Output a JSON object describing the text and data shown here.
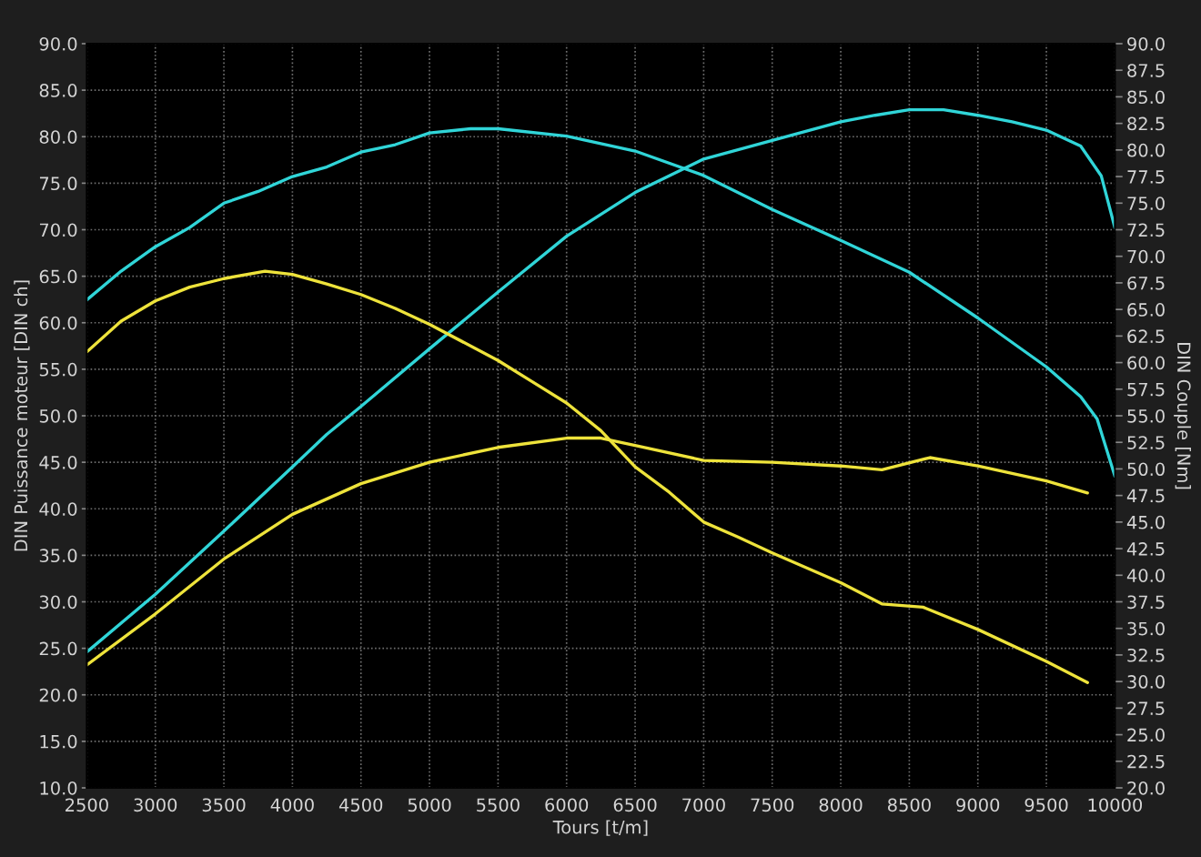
{
  "chart_data": {
    "type": "line",
    "xlabel": "Tours [t/m]",
    "ylabel": "DIN Puissance moteur [DIN ch]",
    "y2label": "DIN Couple [Nm]",
    "xlim": [
      2500,
      10000
    ],
    "xticks": [
      2500,
      3000,
      3500,
      4000,
      4500,
      5000,
      5500,
      6000,
      6500,
      7000,
      7500,
      8000,
      8500,
      9000,
      9500,
      10000
    ],
    "ylim": [
      10,
      90
    ],
    "yticks": [
      {
        "value": 10,
        "label": "10.0"
      },
      {
        "value": 15,
        "label": "15.0"
      },
      {
        "value": 20,
        "label": "20.0"
      },
      {
        "value": 25,
        "label": "25.0"
      },
      {
        "value": 30,
        "label": "30.0"
      },
      {
        "value": 35,
        "label": "35.0"
      },
      {
        "value": 40,
        "label": "40.0"
      },
      {
        "value": 45,
        "label": "45.0"
      },
      {
        "value": 50,
        "label": "50.0"
      },
      {
        "value": 55,
        "label": "55.0"
      },
      {
        "value": 60,
        "label": "60.0"
      },
      {
        "value": 65,
        "label": "65.0"
      },
      {
        "value": 70,
        "label": "70.0"
      },
      {
        "value": 75,
        "label": "75.0"
      },
      {
        "value": 80,
        "label": "80.0"
      },
      {
        "value": 85,
        "label": "85.0"
      },
      {
        "value": 90,
        "label": "90.0"
      }
    ],
    "y2lim": [
      20,
      90
    ],
    "y2ticks": [
      {
        "value": 20,
        "label": "20.0"
      },
      22.5,
      {
        "value": 25,
        "label": "25.0"
      },
      27.5,
      {
        "value": 30,
        "label": "30.0"
      },
      32.5,
      {
        "value": 35,
        "label": "35.0"
      },
      37.5,
      {
        "value": 40,
        "label": "40.0"
      },
      42.5,
      {
        "value": 45,
        "label": "45.0"
      },
      47.5,
      {
        "value": 50,
        "label": "50.0"
      },
      52.5,
      {
        "value": 55,
        "label": "55.0"
      },
      57.5,
      {
        "value": 60,
        "label": "60.0"
      },
      62.5,
      {
        "value": 65,
        "label": "65.0"
      },
      67.5,
      {
        "value": 70,
        "label": "70.0"
      },
      72.5,
      {
        "value": 75,
        "label": "75.0"
      },
      77.5,
      {
        "value": 80,
        "label": "80.0"
      },
      82.5,
      {
        "value": 85,
        "label": "85.0"
      },
      87.5,
      {
        "value": 90,
        "label": "90.0"
      }
    ],
    "grid": true,
    "series": [
      {
        "color": "#30d5d8",
        "axis": "y",
        "x": [
          2500,
          3000,
          3500,
          4000,
          4250,
          4500,
          5000,
          5500,
          6000,
          6500,
          7000,
          7500,
          8000,
          8250,
          8500,
          8750,
          9000,
          9250,
          9500,
          9750,
          9900,
          10000
        ],
        "values": [
          24.6,
          30.8,
          37.6,
          44.5,
          48.0,
          51.0,
          57.2,
          63.3,
          69.3,
          74.0,
          77.6,
          79.6,
          81.6,
          82.3,
          82.9,
          82.9,
          82.3,
          81.6,
          80.7,
          79.0,
          75.8,
          70.2
        ]
      },
      {
        "color": "#30d5d8",
        "axis": "y2",
        "x": [
          2500,
          2750,
          3000,
          3250,
          3500,
          3750,
          4000,
          4250,
          4500,
          4750,
          5000,
          5300,
          5500,
          6000,
          6500,
          7000,
          7500,
          8000,
          8500,
          9000,
          9500,
          9750,
          9870,
          10000
        ],
        "values": [
          65.9,
          68.6,
          70.9,
          72.7,
          75.0,
          76.1,
          77.5,
          78.4,
          79.8,
          80.5,
          81.6,
          82.0,
          82.0,
          81.3,
          79.9,
          77.6,
          74.4,
          71.5,
          68.5,
          64.2,
          59.6,
          56.8,
          54.7,
          49.3
        ]
      },
      {
        "color": "#eee33b",
        "axis": "y",
        "x": [
          2500,
          3000,
          3500,
          4000,
          4500,
          5000,
          5500,
          6000,
          6250,
          6500,
          7000,
          7500,
          8000,
          8300,
          8650,
          9000,
          9500,
          9800
        ],
        "values": [
          23.2,
          28.7,
          34.6,
          39.4,
          42.7,
          45.0,
          46.6,
          47.6,
          47.6,
          46.8,
          45.2,
          45.0,
          44.6,
          44.2,
          45.5,
          44.6,
          43.0,
          41.7
        ]
      },
      {
        "color": "#eee33b",
        "axis": "y2",
        "x": [
          2500,
          2750,
          3000,
          3250,
          3500,
          3800,
          4000,
          4250,
          4500,
          4750,
          5000,
          5500,
          5750,
          6000,
          6250,
          6500,
          6750,
          7000,
          7250,
          7500,
          8000,
          8300,
          8600,
          9000,
          9500,
          9800
        ],
        "values": [
          61.0,
          63.9,
          65.8,
          67.1,
          67.9,
          68.6,
          68.3,
          67.4,
          66.4,
          65.1,
          63.6,
          60.2,
          58.2,
          56.2,
          53.6,
          50.2,
          47.8,
          45.0,
          43.6,
          42.1,
          39.3,
          37.3,
          37.0,
          34.9,
          31.9,
          29.9
        ]
      }
    ]
  }
}
